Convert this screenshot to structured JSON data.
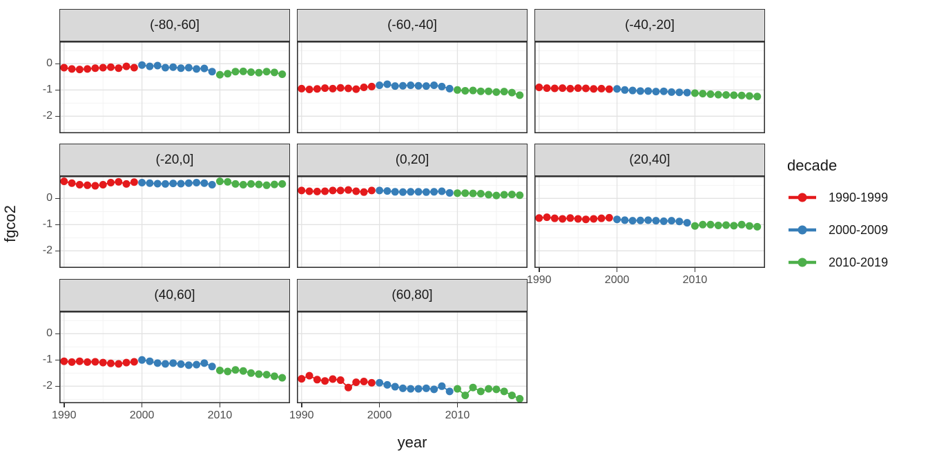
{
  "axes": {
    "x_label": "year",
    "y_label": "fgco2",
    "x_tick_labels": [
      "1990",
      "2000",
      "2010"
    ],
    "y_tick_labels": [
      "0",
      "-1",
      "-2"
    ]
  },
  "legend": {
    "title": "decade",
    "position": "right",
    "items": [
      {
        "label": "1990-1999",
        "color": "#E41A1C"
      },
      {
        "label": "2000-2009",
        "color": "#377EB8"
      },
      {
        "label": "2010-2019",
        "color": "#4DAF4A"
      }
    ]
  },
  "colors": {
    "strip_fill": "#D9D9D9",
    "panel_border": "#333333",
    "grid_major": "#E2E2E2",
    "grid_minor": "#F1F1F1",
    "tick_text": "#4D4D4D"
  },
  "chart_data": {
    "type": "line",
    "subtype": "line+point faceted",
    "title": "",
    "xlabel": "year",
    "ylabel": "fgco2",
    "facet_variable": "latitude band",
    "series_variable": "decade",
    "grid": true,
    "legend_position": "right",
    "x_ticks": [
      1990,
      2000,
      2010
    ],
    "y_ticks": [
      0,
      -1,
      -2
    ],
    "x_minor_ticks": [
      1995,
      2005,
      2015
    ],
    "y_minor_ticks": [
      0.5,
      -0.5,
      -1.5,
      -2.5
    ],
    "x_domain": [
      1989.4,
      2019.0
    ],
    "y_domain": [
      -2.65,
      0.85
    ],
    "series_names": [
      "1990-1999",
      "2000-2009",
      "2010-2019"
    ],
    "series_colors": [
      "#E41A1C",
      "#377EB8",
      "#4DAF4A"
    ],
    "series_x": [
      [
        1990,
        1991,
        1992,
        1993,
        1994,
        1995,
        1996,
        1997,
        1998,
        1999
      ],
      [
        2000,
        2001,
        2002,
        2003,
        2004,
        2005,
        2006,
        2007,
        2008,
        2009
      ],
      [
        2010,
        2011,
        2012,
        2013,
        2014,
        2015,
        2016,
        2017,
        2018
      ]
    ],
    "facets": [
      {
        "label": "(-80,-60]",
        "values": [
          [
            -0.15,
            -0.2,
            -0.22,
            -0.2,
            -0.17,
            -0.15,
            -0.13,
            -0.17,
            -0.1,
            -0.15
          ],
          [
            -0.05,
            -0.1,
            -0.07,
            -0.15,
            -0.13,
            -0.17,
            -0.15,
            -0.2,
            -0.18,
            -0.3
          ],
          [
            -0.42,
            -0.38,
            -0.3,
            -0.29,
            -0.32,
            -0.34,
            -0.3,
            -0.33,
            -0.4
          ]
        ]
      },
      {
        "label": "(-60,-40]",
        "values": [
          [
            -0.95,
            -0.98,
            -0.96,
            -0.93,
            -0.95,
            -0.92,
            -0.94,
            -0.97,
            -0.9,
            -0.87
          ],
          [
            -0.82,
            -0.78,
            -0.85,
            -0.84,
            -0.82,
            -0.84,
            -0.85,
            -0.82,
            -0.87,
            -0.95
          ],
          [
            -1.0,
            -1.03,
            -1.02,
            -1.05,
            -1.05,
            -1.08,
            -1.06,
            -1.1,
            -1.2
          ]
        ]
      },
      {
        "label": "(-40,-20]",
        "values": [
          [
            -0.9,
            -0.93,
            -0.94,
            -0.93,
            -0.95,
            -0.93,
            -0.94,
            -0.96,
            -0.95,
            -0.97
          ],
          [
            -0.96,
            -1.0,
            -1.02,
            -1.04,
            -1.04,
            -1.06,
            -1.05,
            -1.08,
            -1.09,
            -1.1
          ],
          [
            -1.12,
            -1.14,
            -1.16,
            -1.18,
            -1.19,
            -1.2,
            -1.21,
            -1.23,
            -1.25
          ]
        ]
      },
      {
        "label": "(-20,0]",
        "values": [
          [
            0.65,
            0.58,
            0.52,
            0.5,
            0.48,
            0.52,
            0.6,
            0.63,
            0.55,
            0.62
          ],
          [
            0.6,
            0.58,
            0.56,
            0.55,
            0.57,
            0.56,
            0.58,
            0.6,
            0.58,
            0.52
          ],
          [
            0.65,
            0.63,
            0.55,
            0.52,
            0.55,
            0.53,
            0.5,
            0.53,
            0.55
          ]
        ]
      },
      {
        "label": "(0,20]",
        "values": [
          [
            0.3,
            0.27,
            0.26,
            0.27,
            0.3,
            0.3,
            0.32,
            0.27,
            0.24,
            0.3
          ],
          [
            0.3,
            0.28,
            0.25,
            0.24,
            0.25,
            0.25,
            0.24,
            0.25,
            0.27,
            0.21
          ],
          [
            0.2,
            0.2,
            0.19,
            0.18,
            0.14,
            0.11,
            0.14,
            0.15,
            0.12
          ]
        ]
      },
      {
        "label": "(20,40]",
        "values": [
          [
            -0.75,
            -0.72,
            -0.76,
            -0.78,
            -0.75,
            -0.78,
            -0.8,
            -0.78,
            -0.76,
            -0.74
          ],
          [
            -0.8,
            -0.83,
            -0.85,
            -0.84,
            -0.83,
            -0.85,
            -0.87,
            -0.85,
            -0.88,
            -0.93
          ],
          [
            -1.05,
            -1.0,
            -1.0,
            -1.03,
            -1.02,
            -1.04,
            -1.0,
            -1.05,
            -1.08
          ]
        ]
      },
      {
        "label": "(40,60]",
        "values": [
          [
            -1.05,
            -1.08,
            -1.05,
            -1.08,
            -1.07,
            -1.1,
            -1.13,
            -1.15,
            -1.1,
            -1.07
          ],
          [
            -1.0,
            -1.05,
            -1.12,
            -1.15,
            -1.12,
            -1.16,
            -1.2,
            -1.18,
            -1.12,
            -1.25
          ],
          [
            -1.4,
            -1.44,
            -1.38,
            -1.42,
            -1.5,
            -1.54,
            -1.56,
            -1.62,
            -1.68
          ]
        ]
      },
      {
        "label": "(60,80]",
        "values": [
          [
            -1.72,
            -1.6,
            -1.75,
            -1.8,
            -1.73,
            -1.77,
            -2.05,
            -1.85,
            -1.82,
            -1.87
          ],
          [
            -1.87,
            -1.95,
            -2.02,
            -2.08,
            -2.1,
            -2.1,
            -2.08,
            -2.12,
            -2.0,
            -2.2
          ],
          [
            -2.1,
            -2.35,
            -2.05,
            -2.2,
            -2.1,
            -2.12,
            -2.2,
            -2.35,
            -2.48
          ]
        ]
      }
    ]
  }
}
